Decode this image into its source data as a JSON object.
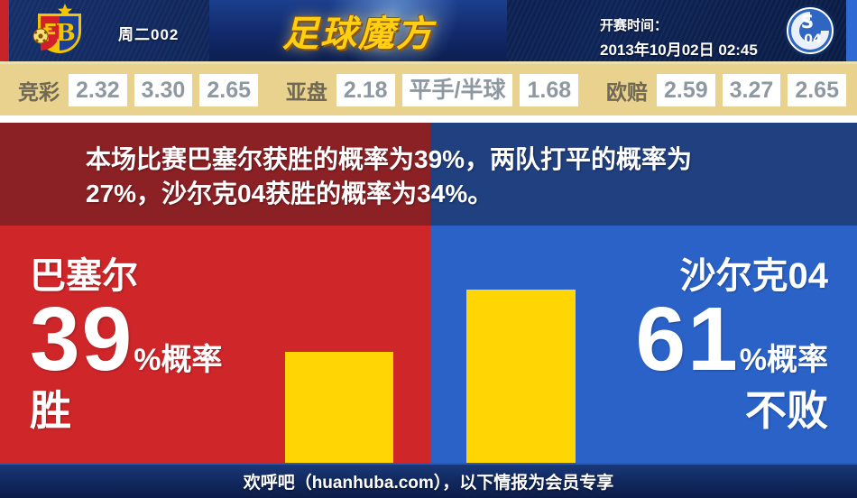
{
  "header": {
    "match_code": "周二002",
    "site_logo_text": "足球魔方",
    "kickoff_label": "开赛时间：",
    "kickoff_time": "2013年10月02日 02:45",
    "home_crest": "fc-basel-crest",
    "away_crest": "schalke-04-crest"
  },
  "odds": {
    "jingcai": {
      "label": "竞彩",
      "values": [
        "2.32",
        "3.30",
        "2.65"
      ]
    },
    "yapan": {
      "label": "亚盘",
      "values": [
        "2.18",
        "平手/半球",
        "1.68"
      ]
    },
    "oupei": {
      "label": "欧赔",
      "values": [
        "2.59",
        "3.27",
        "2.65"
      ]
    }
  },
  "summary": {
    "line1": "本场比赛巴塞尔获胜的概率为39%，两队打平的概率为",
    "line2": "27%，沙尔克04获胜的概率为34%。"
  },
  "home_panel": {
    "team": "巴塞尔",
    "value": "39",
    "unit": "%概率",
    "outcome": "胜",
    "panel_color": "#ce2629",
    "bar_color": "#ffd503"
  },
  "away_panel": {
    "team": "沙尔克04",
    "value": "61",
    "unit": "%概率",
    "outcome": "不败",
    "panel_color": "#2a62c8",
    "bar_color": "#ffd503"
  },
  "footer": {
    "text": "欢呼吧（huanhuba.com），以下情报为会员专享"
  },
  "chart_data": {
    "type": "bar",
    "categories": [
      "巴塞尔 胜",
      "沙尔克04 不败"
    ],
    "values": [
      39,
      61
    ],
    "unit": "%",
    "bar_color": "#ffd503",
    "annotations": [
      "巴塞尔获胜概率 39%",
      "打平概率 27%",
      "沙尔克04获胜概率 34%",
      "沙尔克04不败概率 61%"
    ]
  }
}
